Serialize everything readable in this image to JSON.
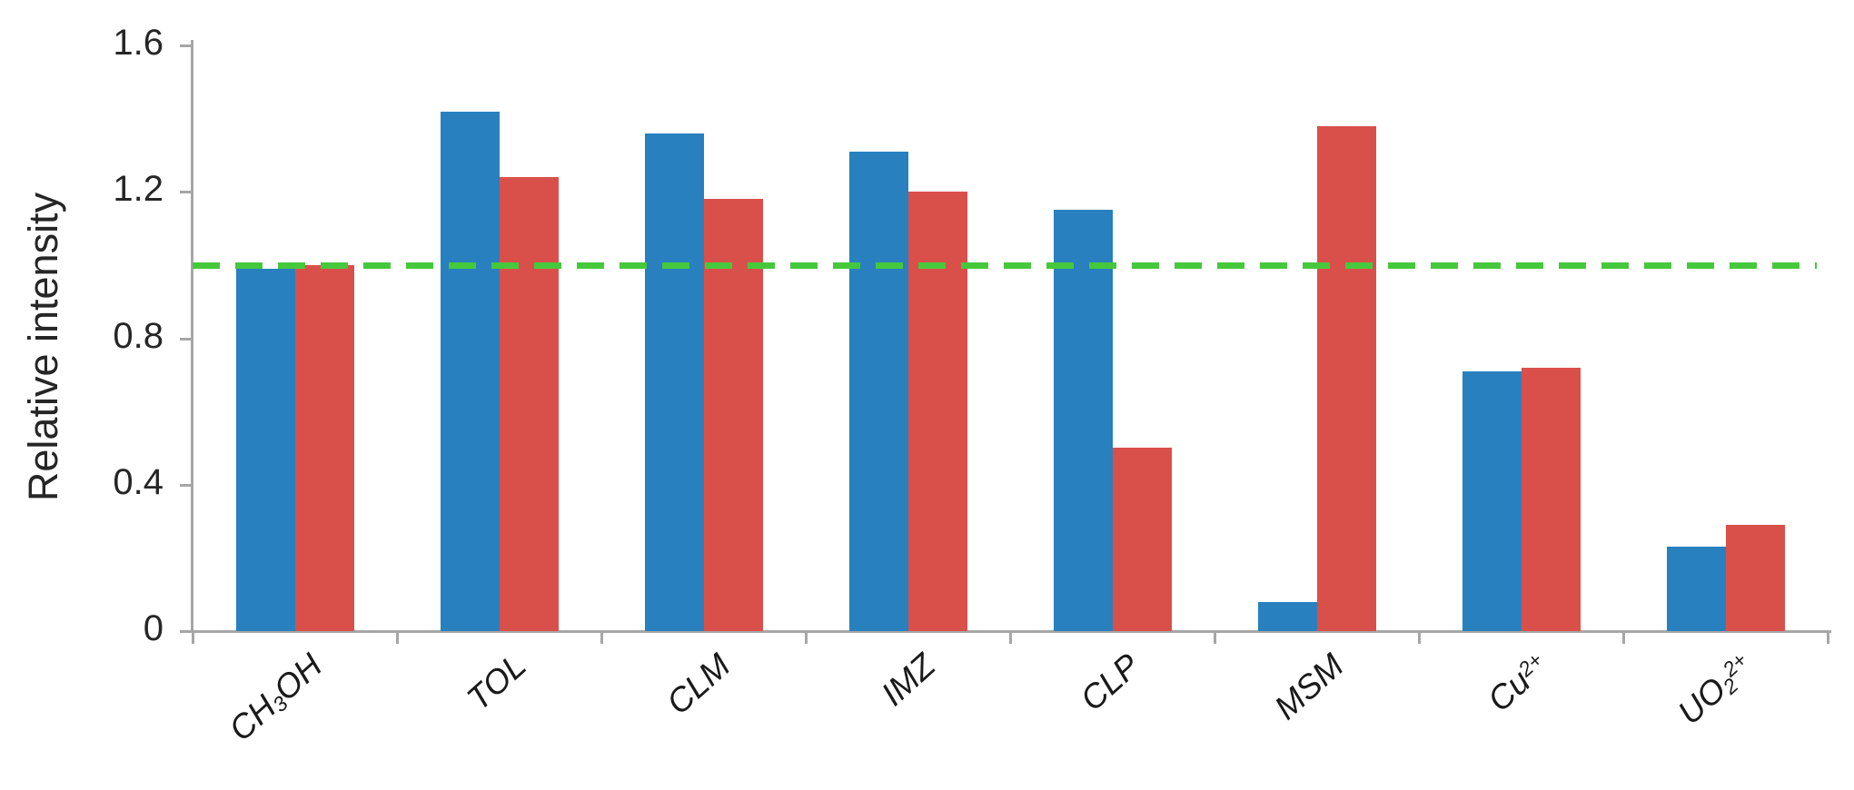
{
  "chart_data": {
    "type": "bar",
    "title": "",
    "xlabel": "",
    "ylabel": "Relative intensity",
    "ylim": [
      0,
      1.6
    ],
    "ytick_values": [
      0,
      0.4,
      0.8,
      1.2,
      1.6
    ],
    "ytick_labels": [
      "0",
      "0.4",
      "0.8",
      "1.2",
      "1.6"
    ],
    "grid": false,
    "legend": "none",
    "axis_color": "#a6a6a6",
    "text_color": "#262626",
    "reference_line": {
      "value": 1.0,
      "style": "dashed",
      "color": "#46c83c"
    },
    "categories": [
      "CH3OH",
      "TOL",
      "CLM",
      "IMZ",
      "CLP",
      "MSM",
      "Cu2+",
      "UO2 2+"
    ],
    "category_parts": [
      [
        {
          "t": "CH"
        },
        {
          "t": "3",
          "s": "sub"
        },
        {
          "t": "OH"
        }
      ],
      [
        {
          "t": "TOL"
        }
      ],
      [
        {
          "t": "CLM"
        }
      ],
      [
        {
          "t": "IMZ"
        }
      ],
      [
        {
          "t": "CLP"
        }
      ],
      [
        {
          "t": "MSM"
        }
      ],
      [
        {
          "t": "Cu"
        },
        {
          "t": "2+",
          "s": "sup"
        }
      ],
      [
        {
          "t": "UO"
        },
        {
          "t": "2",
          "s": "sub"
        },
        {
          "t": "2+",
          "s": "sup"
        }
      ]
    ],
    "series": [
      {
        "name": "series-1-blue",
        "color": "#2980be",
        "values": [
          0.99,
          1.42,
          1.36,
          1.31,
          1.15,
          0.08,
          0.71,
          0.23
        ]
      },
      {
        "name": "series-2-red",
        "color": "#d9504b",
        "values": [
          1.0,
          1.24,
          1.18,
          1.2,
          0.5,
          1.38,
          0.72,
          0.29
        ]
      }
    ]
  }
}
